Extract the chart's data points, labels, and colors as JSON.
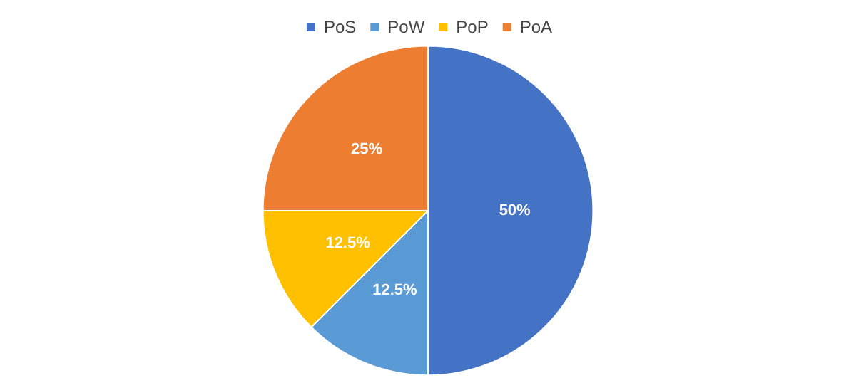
{
  "chart_data": {
    "type": "pie",
    "categories": [
      "PoS",
      "PoW",
      "PoP",
      "PoA"
    ],
    "values": [
      50,
      12.5,
      12.5,
      25
    ],
    "colors": [
      "#4472c4",
      "#5b9bd5",
      "#ffc000",
      "#ed7d31"
    ],
    "value_labels": [
      "50%",
      "12.5%",
      "12.5%",
      "25%"
    ],
    "legend": "top"
  }
}
